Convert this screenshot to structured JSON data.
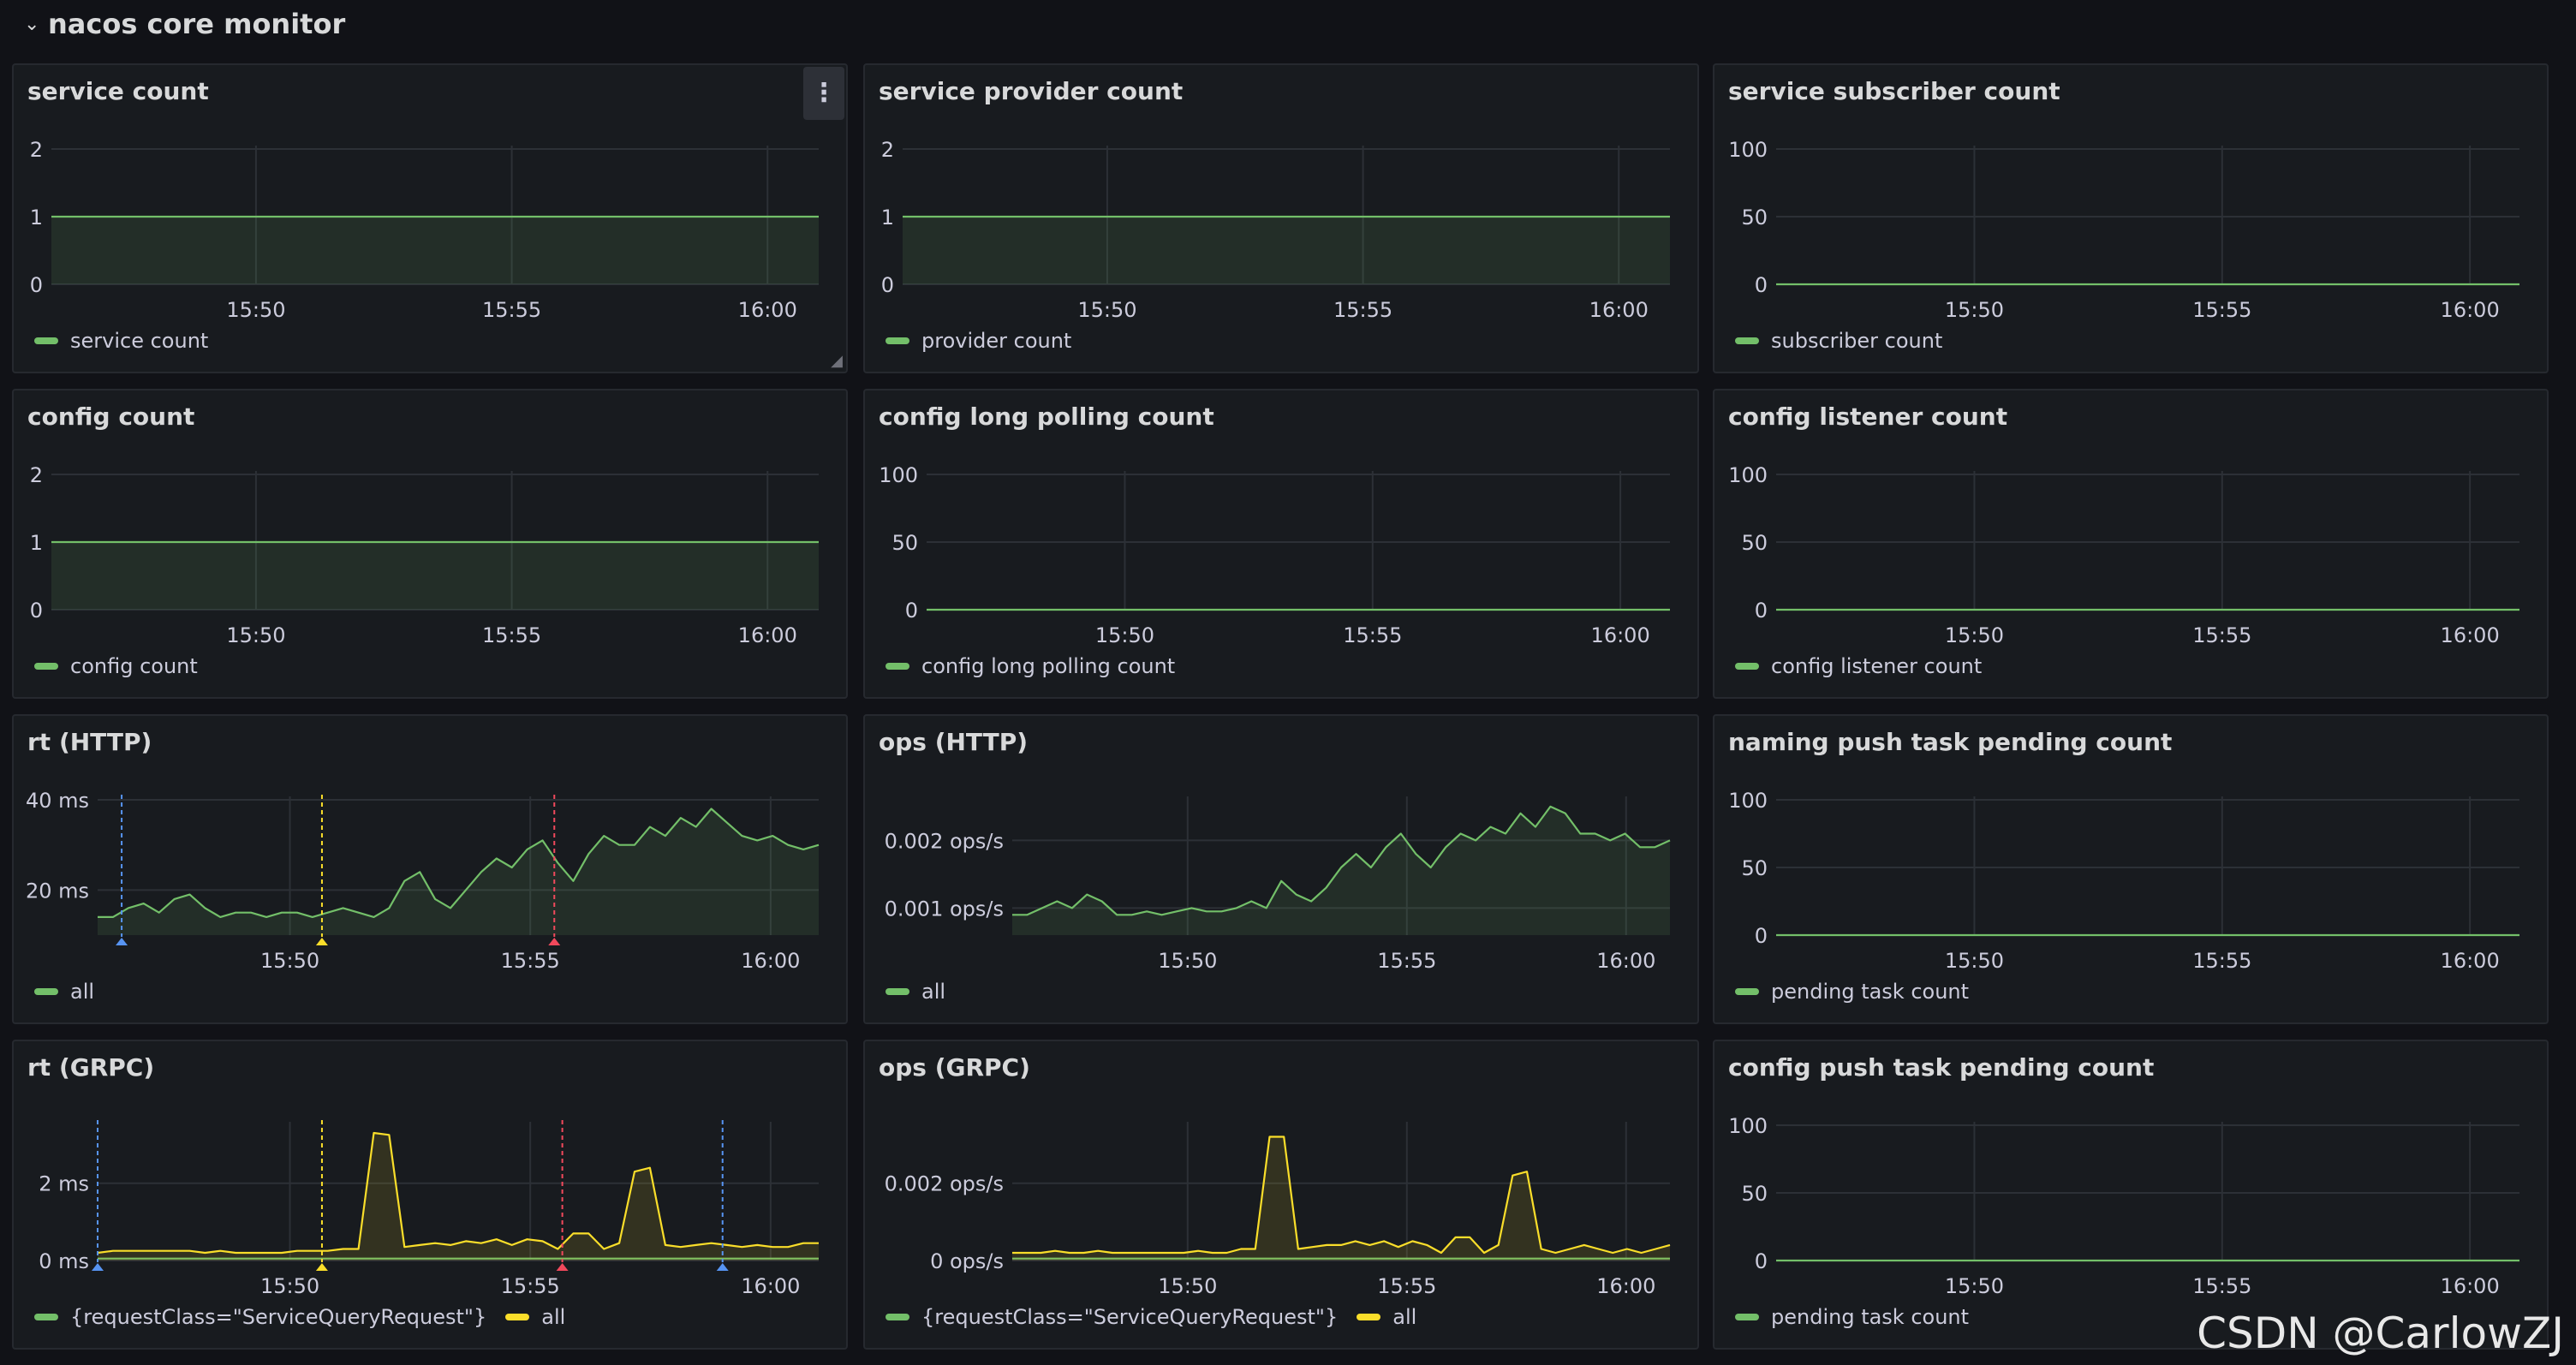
{
  "row": {
    "title": "nacos core monitor",
    "chevron_icon": "chevron-down-icon"
  },
  "colors": {
    "green": "#73bf69",
    "yellow": "#fade2a",
    "blue": "#5794f2",
    "red": "#f2495c",
    "grid": "#2c3036"
  },
  "watermark": "CSDN @CarlowZJ",
  "x_ticks": [
    "15:50",
    "15:55",
    "16:00"
  ],
  "panels": [
    {
      "id": "service-count",
      "title": "service count",
      "has_menu": true,
      "chart_data": {
        "type": "area",
        "x_domain": [
          "15:46",
          "16:01"
        ],
        "ylim": [
          0,
          2
        ],
        "y_ticks": [
          "0",
          "1",
          "2"
        ],
        "x_ticks": [
          "15:50",
          "15:55",
          "16:00"
        ],
        "grid": true,
        "legend": "bottom",
        "series": [
          {
            "name": "service count",
            "color": "#73bf69",
            "fill": true,
            "values": [
              1,
              1
            ]
          }
        ]
      }
    },
    {
      "id": "service-provider-count",
      "title": "service provider count",
      "chart_data": {
        "type": "area",
        "x_domain": [
          "15:46",
          "16:01"
        ],
        "ylim": [
          0,
          2
        ],
        "y_ticks": [
          "0",
          "1",
          "2"
        ],
        "x_ticks": [
          "15:50",
          "15:55",
          "16:00"
        ],
        "grid": true,
        "legend": "bottom",
        "series": [
          {
            "name": "provider count",
            "color": "#73bf69",
            "fill": true,
            "values": [
              1,
              1
            ]
          }
        ]
      }
    },
    {
      "id": "service-subscriber-count",
      "title": "service subscriber count",
      "chart_data": {
        "type": "line",
        "x_domain": [
          "15:46",
          "16:01"
        ],
        "ylim": [
          0,
          100
        ],
        "y_ticks": [
          "0",
          "50",
          "100"
        ],
        "x_ticks": [
          "15:50",
          "15:55",
          "16:00"
        ],
        "grid": true,
        "legend": "bottom",
        "series": [
          {
            "name": "subscriber count",
            "color": "#73bf69",
            "fill": false,
            "values": [
              0,
              0
            ]
          }
        ]
      }
    },
    {
      "id": "config-count",
      "title": "config count",
      "chart_data": {
        "type": "area",
        "x_domain": [
          "15:46",
          "16:01"
        ],
        "ylim": [
          0,
          2
        ],
        "y_ticks": [
          "0",
          "1",
          "2"
        ],
        "x_ticks": [
          "15:50",
          "15:55",
          "16:00"
        ],
        "grid": true,
        "legend": "bottom",
        "series": [
          {
            "name": "config count",
            "color": "#73bf69",
            "fill": true,
            "values": [
              1,
              1
            ]
          }
        ]
      }
    },
    {
      "id": "config-long-polling-count",
      "title": "config long polling count",
      "chart_data": {
        "type": "line",
        "x_domain": [
          "15:46",
          "16:01"
        ],
        "ylim": [
          0,
          100
        ],
        "y_ticks": [
          "0",
          "50",
          "100"
        ],
        "x_ticks": [
          "15:50",
          "15:55",
          "16:00"
        ],
        "grid": true,
        "legend": "bottom",
        "series": [
          {
            "name": "config long polling count",
            "color": "#73bf69",
            "fill": false,
            "values": [
              0,
              0
            ]
          }
        ]
      }
    },
    {
      "id": "config-listener-count",
      "title": "config listener count",
      "chart_data": {
        "type": "line",
        "x_domain": [
          "15:46",
          "16:01"
        ],
        "ylim": [
          0,
          100
        ],
        "y_ticks": [
          "0",
          "50",
          "100"
        ],
        "x_ticks": [
          "15:50",
          "15:55",
          "16:00"
        ],
        "grid": true,
        "legend": "bottom",
        "series": [
          {
            "name": "config listener count",
            "color": "#73bf69",
            "fill": false,
            "values": [
              0,
              0
            ]
          }
        ]
      }
    },
    {
      "id": "rt-http",
      "title": "rt (HTTP)",
      "chart_data": {
        "type": "area",
        "x_domain": [
          "15:46",
          "16:01"
        ],
        "ylim": [
          10,
          40
        ],
        "y_ticks": [
          "20 ms",
          "40 ms"
        ],
        "y_tick_values": [
          20,
          40
        ],
        "x_ticks": [
          "15:50",
          "15:55",
          "16:00"
        ],
        "grid": true,
        "legend": "bottom",
        "series": [
          {
            "name": "all",
            "color": "#73bf69",
            "fill": true,
            "values": [
              14,
              14,
              16,
              17,
              15,
              18,
              19,
              16,
              14,
              15,
              15,
              14,
              15,
              15,
              14,
              15,
              16,
              15,
              14,
              16,
              22,
              24,
              18,
              16,
              20,
              24,
              27,
              25,
              29,
              31,
              26,
              22,
              28,
              32,
              30,
              30,
              34,
              32,
              36,
              34,
              38,
              35,
              32,
              31,
              32,
              30,
              29,
              30
            ]
          }
        ],
        "annotations": [
          {
            "x": "15:46:30",
            "color": "#5794f2"
          },
          {
            "x": "15:50:40",
            "color": "#fade2a"
          },
          {
            "x": "15:55:30",
            "color": "#f2495c"
          }
        ]
      }
    },
    {
      "id": "ops-http",
      "title": "ops (HTTP)",
      "chart_data": {
        "type": "area",
        "x_domain": [
          "15:46",
          "16:01"
        ],
        "ylim": [
          0.0006,
          0.0026
        ],
        "y_ticks": [
          "0.001 ops/s",
          "0.002 ops/s"
        ],
        "y_tick_values": [
          0.001,
          0.002
        ],
        "x_ticks": [
          "15:50",
          "15:55",
          "16:00"
        ],
        "grid": true,
        "legend": "bottom",
        "series": [
          {
            "name": "all",
            "color": "#73bf69",
            "fill": true,
            "values": [
              0.0009,
              0.0009,
              0.001,
              0.0011,
              0.001,
              0.0012,
              0.0011,
              0.0009,
              0.0009,
              0.00095,
              0.0009,
              0.00095,
              0.001,
              0.00095,
              0.00095,
              0.001,
              0.0011,
              0.001,
              0.0014,
              0.0012,
              0.0011,
              0.0013,
              0.0016,
              0.0018,
              0.0016,
              0.0019,
              0.0021,
              0.0018,
              0.0016,
              0.0019,
              0.0021,
              0.002,
              0.0022,
              0.0021,
              0.0024,
              0.0022,
              0.0025,
              0.0024,
              0.0021,
              0.0021,
              0.002,
              0.0021,
              0.0019,
              0.0019,
              0.002
            ]
          }
        ]
      }
    },
    {
      "id": "naming-push-task-pending-count",
      "title": "naming push task pending count",
      "chart_data": {
        "type": "line",
        "x_domain": [
          "15:46",
          "16:01"
        ],
        "ylim": [
          0,
          100
        ],
        "y_ticks": [
          "0",
          "50",
          "100"
        ],
        "x_ticks": [
          "15:50",
          "15:55",
          "16:00"
        ],
        "grid": true,
        "legend": "bottom",
        "series": [
          {
            "name": "pending task count",
            "color": "#73bf69",
            "fill": false,
            "values": [
              0,
              0
            ]
          }
        ]
      }
    },
    {
      "id": "rt-grpc",
      "title": "rt (GRPC)",
      "chart_data": {
        "type": "area",
        "x_domain": [
          "15:46",
          "16:01"
        ],
        "ylim": [
          0,
          3.5
        ],
        "y_ticks": [
          "0 ms",
          "2 ms"
        ],
        "y_tick_values": [
          0,
          2
        ],
        "x_ticks": [
          "15:50",
          "15:55",
          "16:00"
        ],
        "grid": true,
        "legend": "bottom",
        "series": [
          {
            "name": "{requestClass=\"ServiceQueryRequest\"}",
            "color": "#73bf69",
            "fill": false,
            "values": [
              0.05,
              0.05
            ]
          },
          {
            "name": "all",
            "color": "#fade2a",
            "fill": true,
            "values": [
              0.2,
              0.25,
              0.25,
              0.25,
              0.25,
              0.25,
              0.25,
              0.2,
              0.25,
              0.2,
              0.2,
              0.2,
              0.2,
              0.25,
              0.25,
              0.25,
              0.3,
              0.3,
              3.3,
              3.25,
              0.35,
              0.4,
              0.45,
              0.4,
              0.5,
              0.45,
              0.55,
              0.4,
              0.55,
              0.5,
              0.3,
              0.7,
              0.7,
              0.3,
              0.45,
              2.3,
              2.4,
              0.4,
              0.35,
              0.4,
              0.45,
              0.4,
              0.35,
              0.4,
              0.35,
              0.35,
              0.45,
              0.45
            ]
          }
        ],
        "annotations": [
          {
            "x": "15:46:00",
            "color": "#5794f2"
          },
          {
            "x": "15:50:40",
            "color": "#fade2a"
          },
          {
            "x": "15:55:40",
            "color": "#f2495c"
          },
          {
            "x": "15:59:00",
            "color": "#5794f2"
          }
        ]
      }
    },
    {
      "id": "ops-grpc",
      "title": "ops (GRPC)",
      "chart_data": {
        "type": "area",
        "x_domain": [
          "15:46",
          "16:01"
        ],
        "ylim": [
          0,
          0.0035
        ],
        "y_ticks": [
          "0 ops/s",
          "0.002 ops/s"
        ],
        "y_tick_values": [
          0,
          0.002
        ],
        "x_ticks": [
          "15:50",
          "15:55",
          "16:00"
        ],
        "grid": true,
        "legend": "bottom",
        "series": [
          {
            "name": "{requestClass=\"ServiceQueryRequest\"}",
            "color": "#73bf69",
            "fill": false,
            "values": [
              5e-05,
              5e-05
            ]
          },
          {
            "name": "all",
            "color": "#fade2a",
            "fill": true,
            "values": [
              0.0002,
              0.0002,
              0.0002,
              0.00025,
              0.0002,
              0.0002,
              0.00025,
              0.0002,
              0.0002,
              0.0002,
              0.0002,
              0.0002,
              0.0002,
              0.00025,
              0.0002,
              0.0002,
              0.0003,
              0.0003,
              0.0032,
              0.0032,
              0.0003,
              0.00035,
              0.0004,
              0.0004,
              0.0005,
              0.0004,
              0.0005,
              0.00035,
              0.0005,
              0.0004,
              0.0002,
              0.0006,
              0.0006,
              0.0002,
              0.0004,
              0.0022,
              0.0023,
              0.0003,
              0.0002,
              0.0003,
              0.0004,
              0.0003,
              0.0002,
              0.0003,
              0.0002,
              0.0003,
              0.0004
            ]
          }
        ]
      }
    },
    {
      "id": "config-push-task-pending-count",
      "title": "config push task pending count",
      "chart_data": {
        "type": "line",
        "x_domain": [
          "15:46",
          "16:01"
        ],
        "ylim": [
          0,
          100
        ],
        "y_ticks": [
          "0",
          "50",
          "100"
        ],
        "x_ticks": [
          "15:50",
          "15:55",
          "16:00"
        ],
        "grid": true,
        "legend": "bottom",
        "series": [
          {
            "name": "pending task count",
            "color": "#73bf69",
            "fill": false,
            "values": [
              0,
              0
            ]
          }
        ]
      }
    }
  ]
}
